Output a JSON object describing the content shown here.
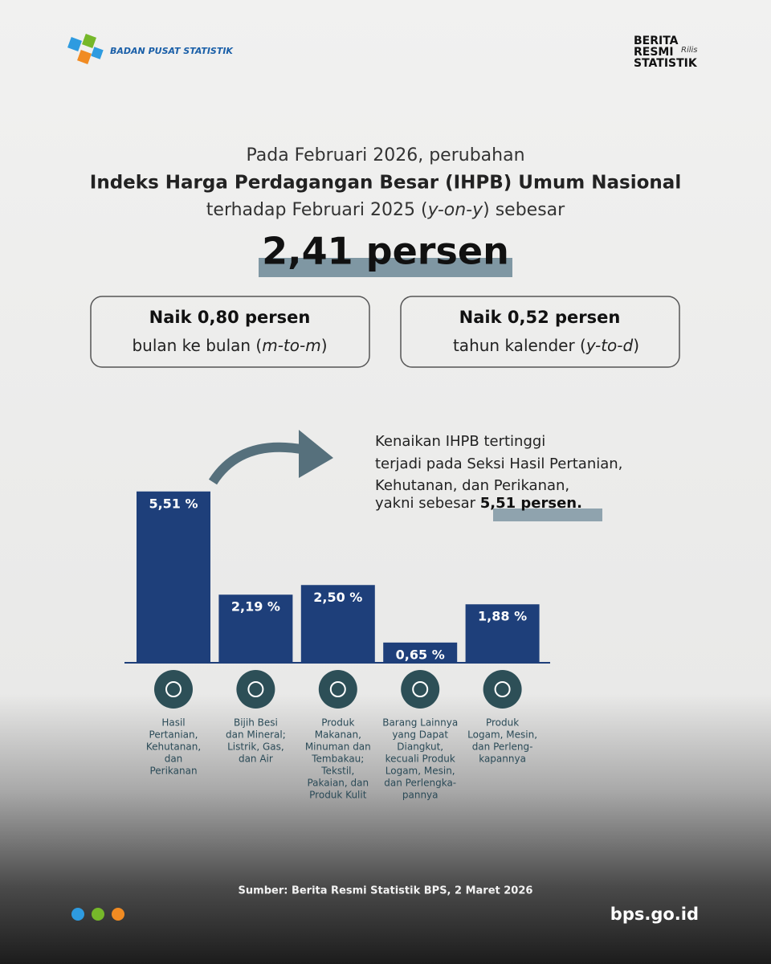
{
  "header": {
    "org": "BADAN PUSAT STATISTIK",
    "badge": [
      "BERITA",
      "RESMI",
      "STATISTIK"
    ],
    "badge_script": "Rilis"
  },
  "headline": {
    "line1": "Pada Februari 2026, perubahan",
    "line2": "Indeks Harga Perdagangan Besar (IHPB) Umum Nasional",
    "line3": [
      "terhadap Februari 2025 (",
      "y-on-y",
      ") sebesar"
    ],
    "value": "2,41 persen"
  },
  "boxes": [
    {
      "title": "Naik 0,80 persen",
      "text": [
        "bulan ke bulan (",
        "m-to-m",
        ")"
      ]
    },
    {
      "title": "Naik 0,52 persen",
      "text": [
        "tahun kalender (",
        "y-to-d",
        ")"
      ]
    }
  ],
  "annotation": {
    "lines": [
      "Kenaikan IHPB tertinggi",
      "terjadi pada Seksi Hasil Pertanian,",
      "Kehutanan, dan Perikanan,",
      "yakni sebesar "
    ],
    "highlight": "5,51 persen."
  },
  "chart_data": {
    "type": "bar",
    "color": "#1e3f7a",
    "categories": [
      [
        "Hasil",
        "Pertanian,",
        "Kehutanan,",
        "dan",
        "Perikanan"
      ],
      [
        "Bijih Besi",
        "dan Mineral;",
        "Listrik, Gas,",
        "dan Air"
      ],
      [
        "Produk",
        "Makanan,",
        "Minuman dan",
        "Tembakau;",
        "Tekstil,",
        "Pakaian, dan",
        "Produk Kulit"
      ],
      [
        "Barang Lainnya",
        "yang Dapat",
        "Diangkut,",
        "kecuali Produk",
        "Logam, Mesin,",
        "dan Perlengka-",
        "pannya"
      ],
      [
        "Produk",
        "Logam, Mesin,",
        "dan Perleng-",
        "kapannya"
      ]
    ],
    "values": [
      5.51,
      2.19,
      2.5,
      0.65,
      1.88
    ],
    "value_labels": [
      "5,51 %",
      "2,19 %",
      "2,50 %",
      "0,65 %",
      "1,88 %"
    ]
  },
  "footer": {
    "source": "Sumber: Berita Resmi Statistik BPS, 2 Maret 2026",
    "url": "bps.go.id"
  }
}
